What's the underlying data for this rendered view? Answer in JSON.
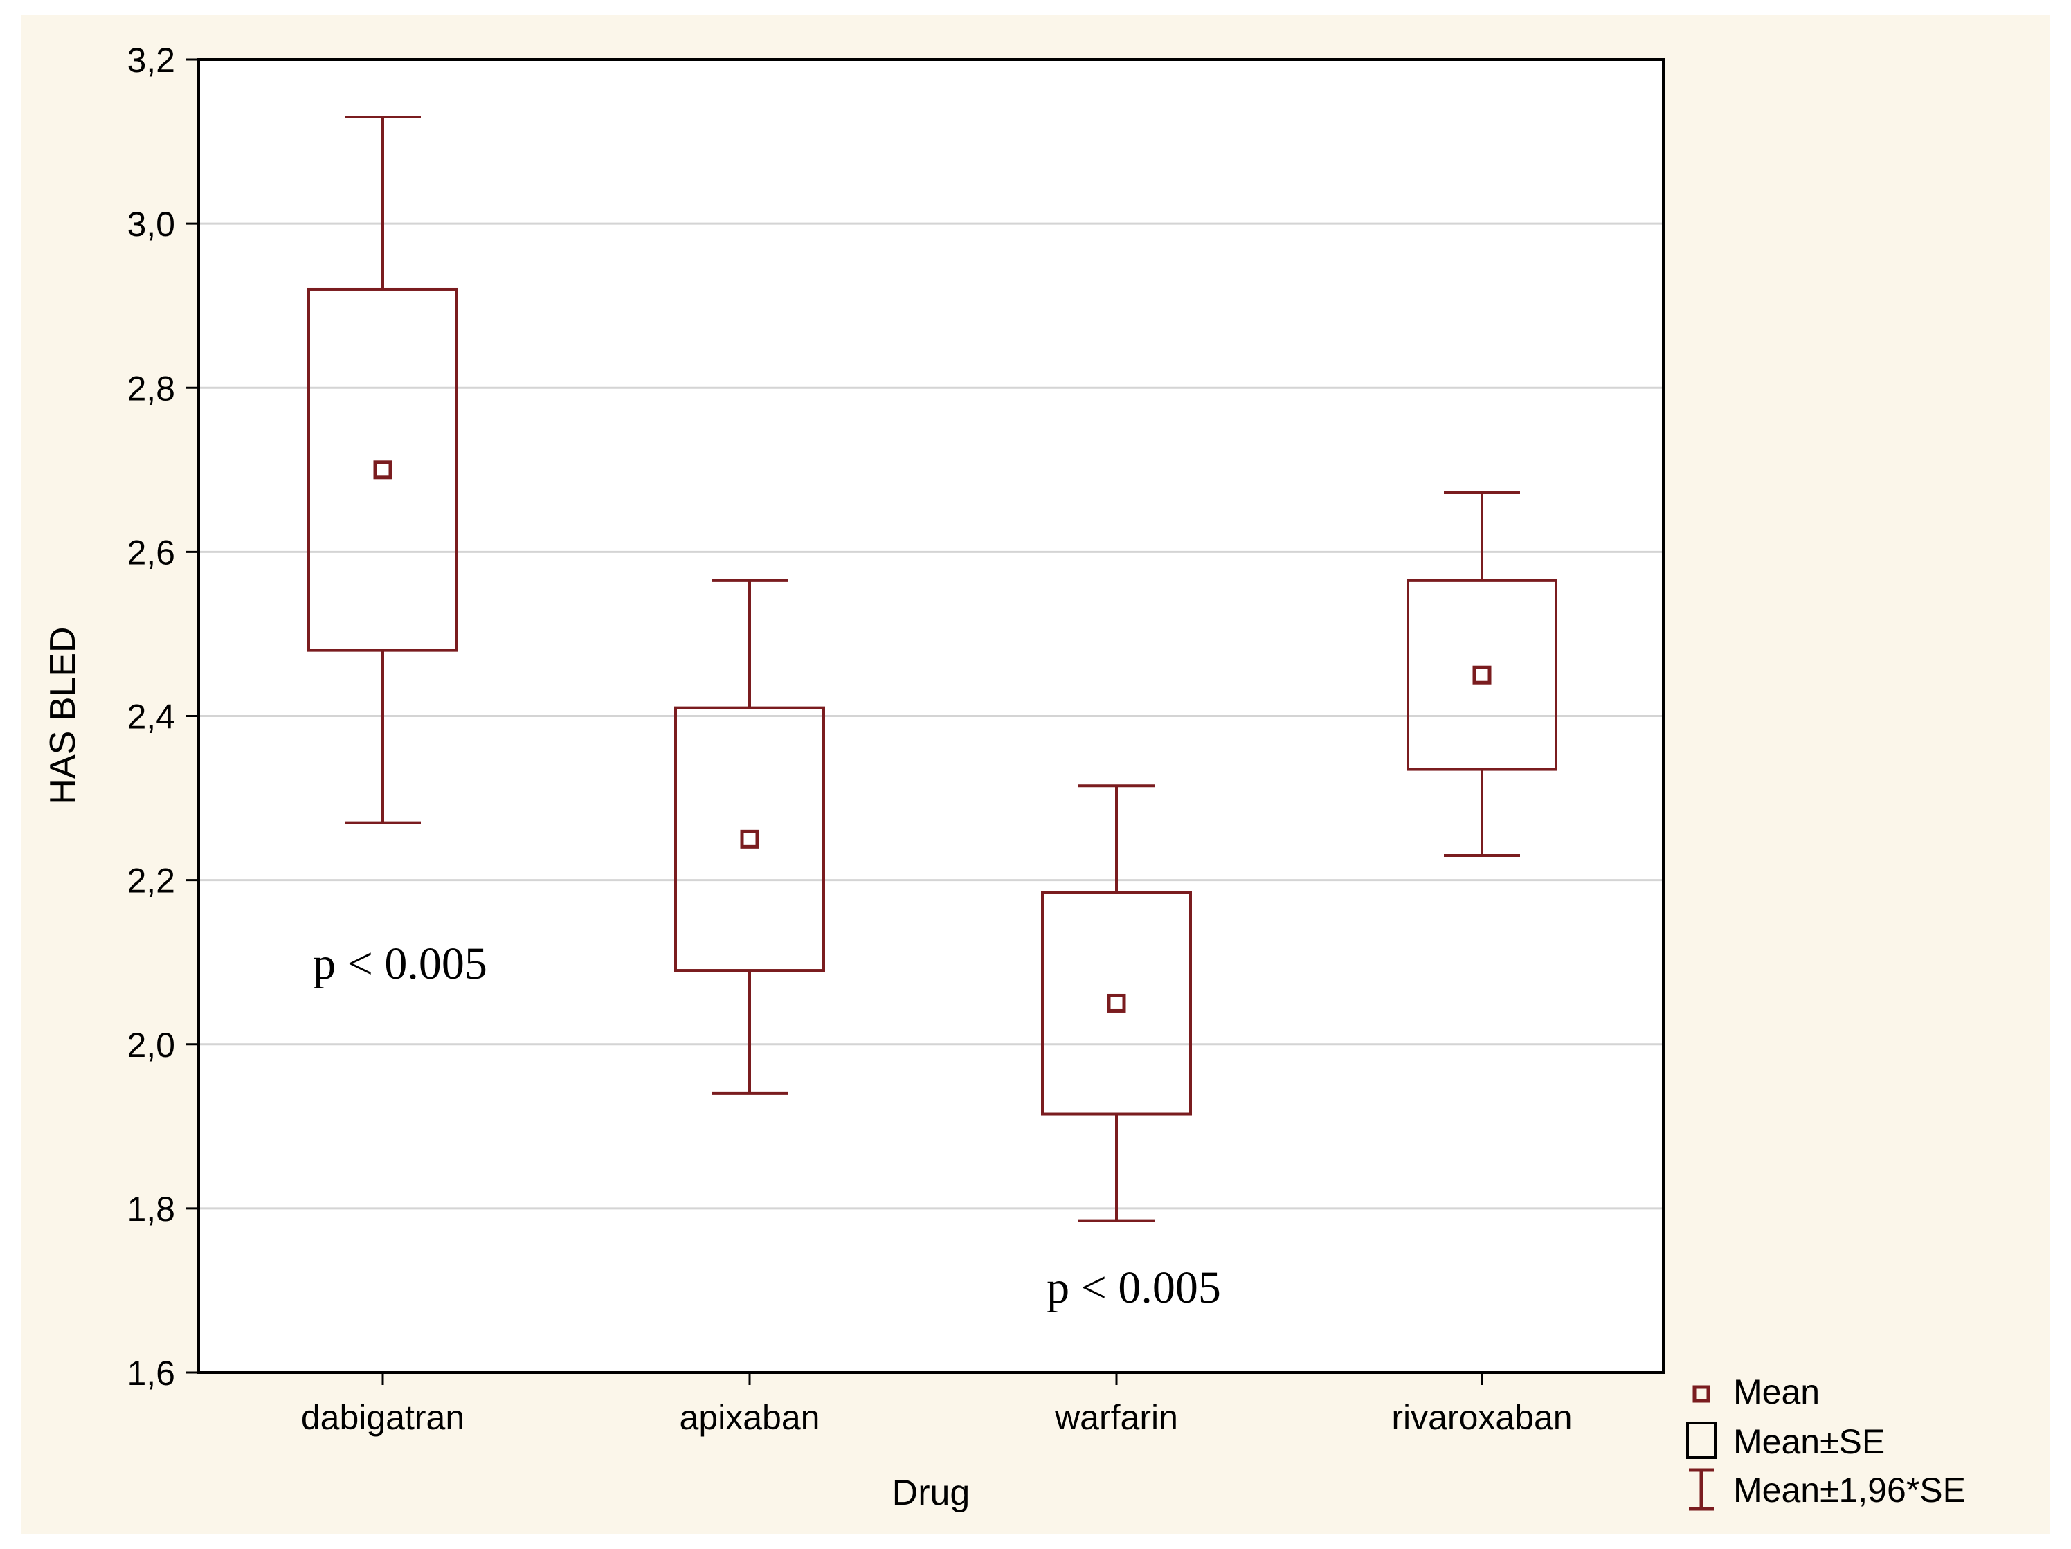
{
  "chart_data": {
    "type": "box",
    "title": "",
    "xlabel": "Drug",
    "ylabel": "HAS BLED",
    "ylim": [
      1.6,
      3.2
    ],
    "yticks": [
      1.6,
      1.8,
      2.0,
      2.2,
      2.4,
      2.6,
      2.8,
      3.0,
      3.2
    ],
    "ytick_labels": [
      "1,6",
      "1,8",
      "2,0",
      "2,2",
      "2,4",
      "2,6",
      "2,8",
      "3,0",
      "3,2"
    ],
    "grid": true,
    "categories": [
      "dabigatran",
      "apixaban",
      "warfarin",
      "rivaroxaban"
    ],
    "series": [
      {
        "name": "dabigatran",
        "mean": 2.7,
        "se_low": 2.48,
        "se_high": 2.92,
        "ci_low": 2.27,
        "ci_high": 3.13
      },
      {
        "name": "apixaban",
        "mean": 2.25,
        "se_low": 2.09,
        "se_high": 2.41,
        "ci_low": 1.94,
        "ci_high": 2.565
      },
      {
        "name": "warfarin",
        "mean": 2.05,
        "se_low": 1.915,
        "se_high": 2.185,
        "ci_low": 1.785,
        "ci_high": 2.315
      },
      {
        "name": "rivaroxaban",
        "mean": 2.45,
        "se_low": 2.335,
        "se_high": 2.565,
        "ci_low": 2.23,
        "ci_high": 2.672
      }
    ],
    "annotations": [
      {
        "text": "p < 0.005",
        "category": "dabigatran",
        "y": 2.08
      },
      {
        "text": "p < 0.005",
        "category": "warfarin",
        "y": 1.685
      }
    ],
    "legend": {
      "position": "bottom-right",
      "items": [
        {
          "symbol": "mean-marker",
          "label": "Mean"
        },
        {
          "symbol": "box",
          "label": "Mean±SE"
        },
        {
          "symbol": "whisker",
          "label": "Mean±1,96*SE"
        }
      ]
    },
    "colors": {
      "series": "#7a1c1f",
      "grid": "#d4d4d4",
      "axis": "#000000",
      "background_outer": "#fbf6ea",
      "plot_background": "#ffffff"
    }
  }
}
